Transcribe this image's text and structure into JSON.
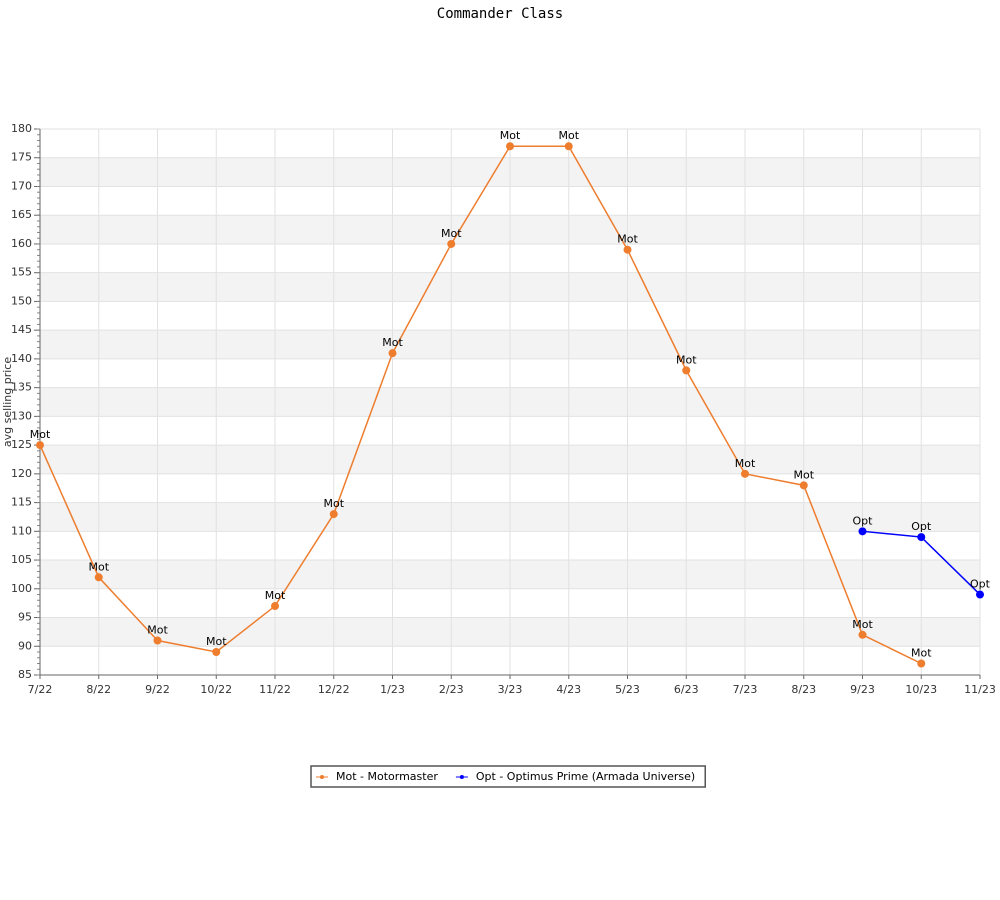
{
  "chart_data": {
    "type": "line",
    "title": "Commander Class",
    "ylabel": "avg selling price",
    "categories": [
      "7/22",
      "8/22",
      "9/22",
      "10/22",
      "11/22",
      "12/22",
      "1/23",
      "2/23",
      "3/23",
      "4/23",
      "5/23",
      "6/23",
      "7/23",
      "8/23",
      "9/23",
      "10/23",
      "11/23"
    ],
    "series": [
      {
        "name": "Mot - Motormaster",
        "point_label": "Mot",
        "color": "#ee7d2e",
        "values": [
          125,
          102,
          91,
          89,
          97,
          113,
          141,
          160,
          177,
          177,
          159,
          138,
          120,
          118,
          92,
          87,
          null
        ]
      },
      {
        "name": "Opt - Optimus Prime (Armada Universe)",
        "point_label": "Opt",
        "color": "#0000ff",
        "values": [
          null,
          null,
          null,
          null,
          null,
          null,
          null,
          null,
          null,
          null,
          null,
          null,
          null,
          null,
          110,
          109,
          99
        ]
      }
    ],
    "ylim": [
      85,
      180
    ],
    "yticks": [
      85,
      90,
      95,
      100,
      105,
      110,
      115,
      120,
      125,
      130,
      135,
      140,
      145,
      150,
      155,
      160,
      165,
      170,
      175,
      180
    ],
    "grid": true,
    "legend": "bottom"
  }
}
